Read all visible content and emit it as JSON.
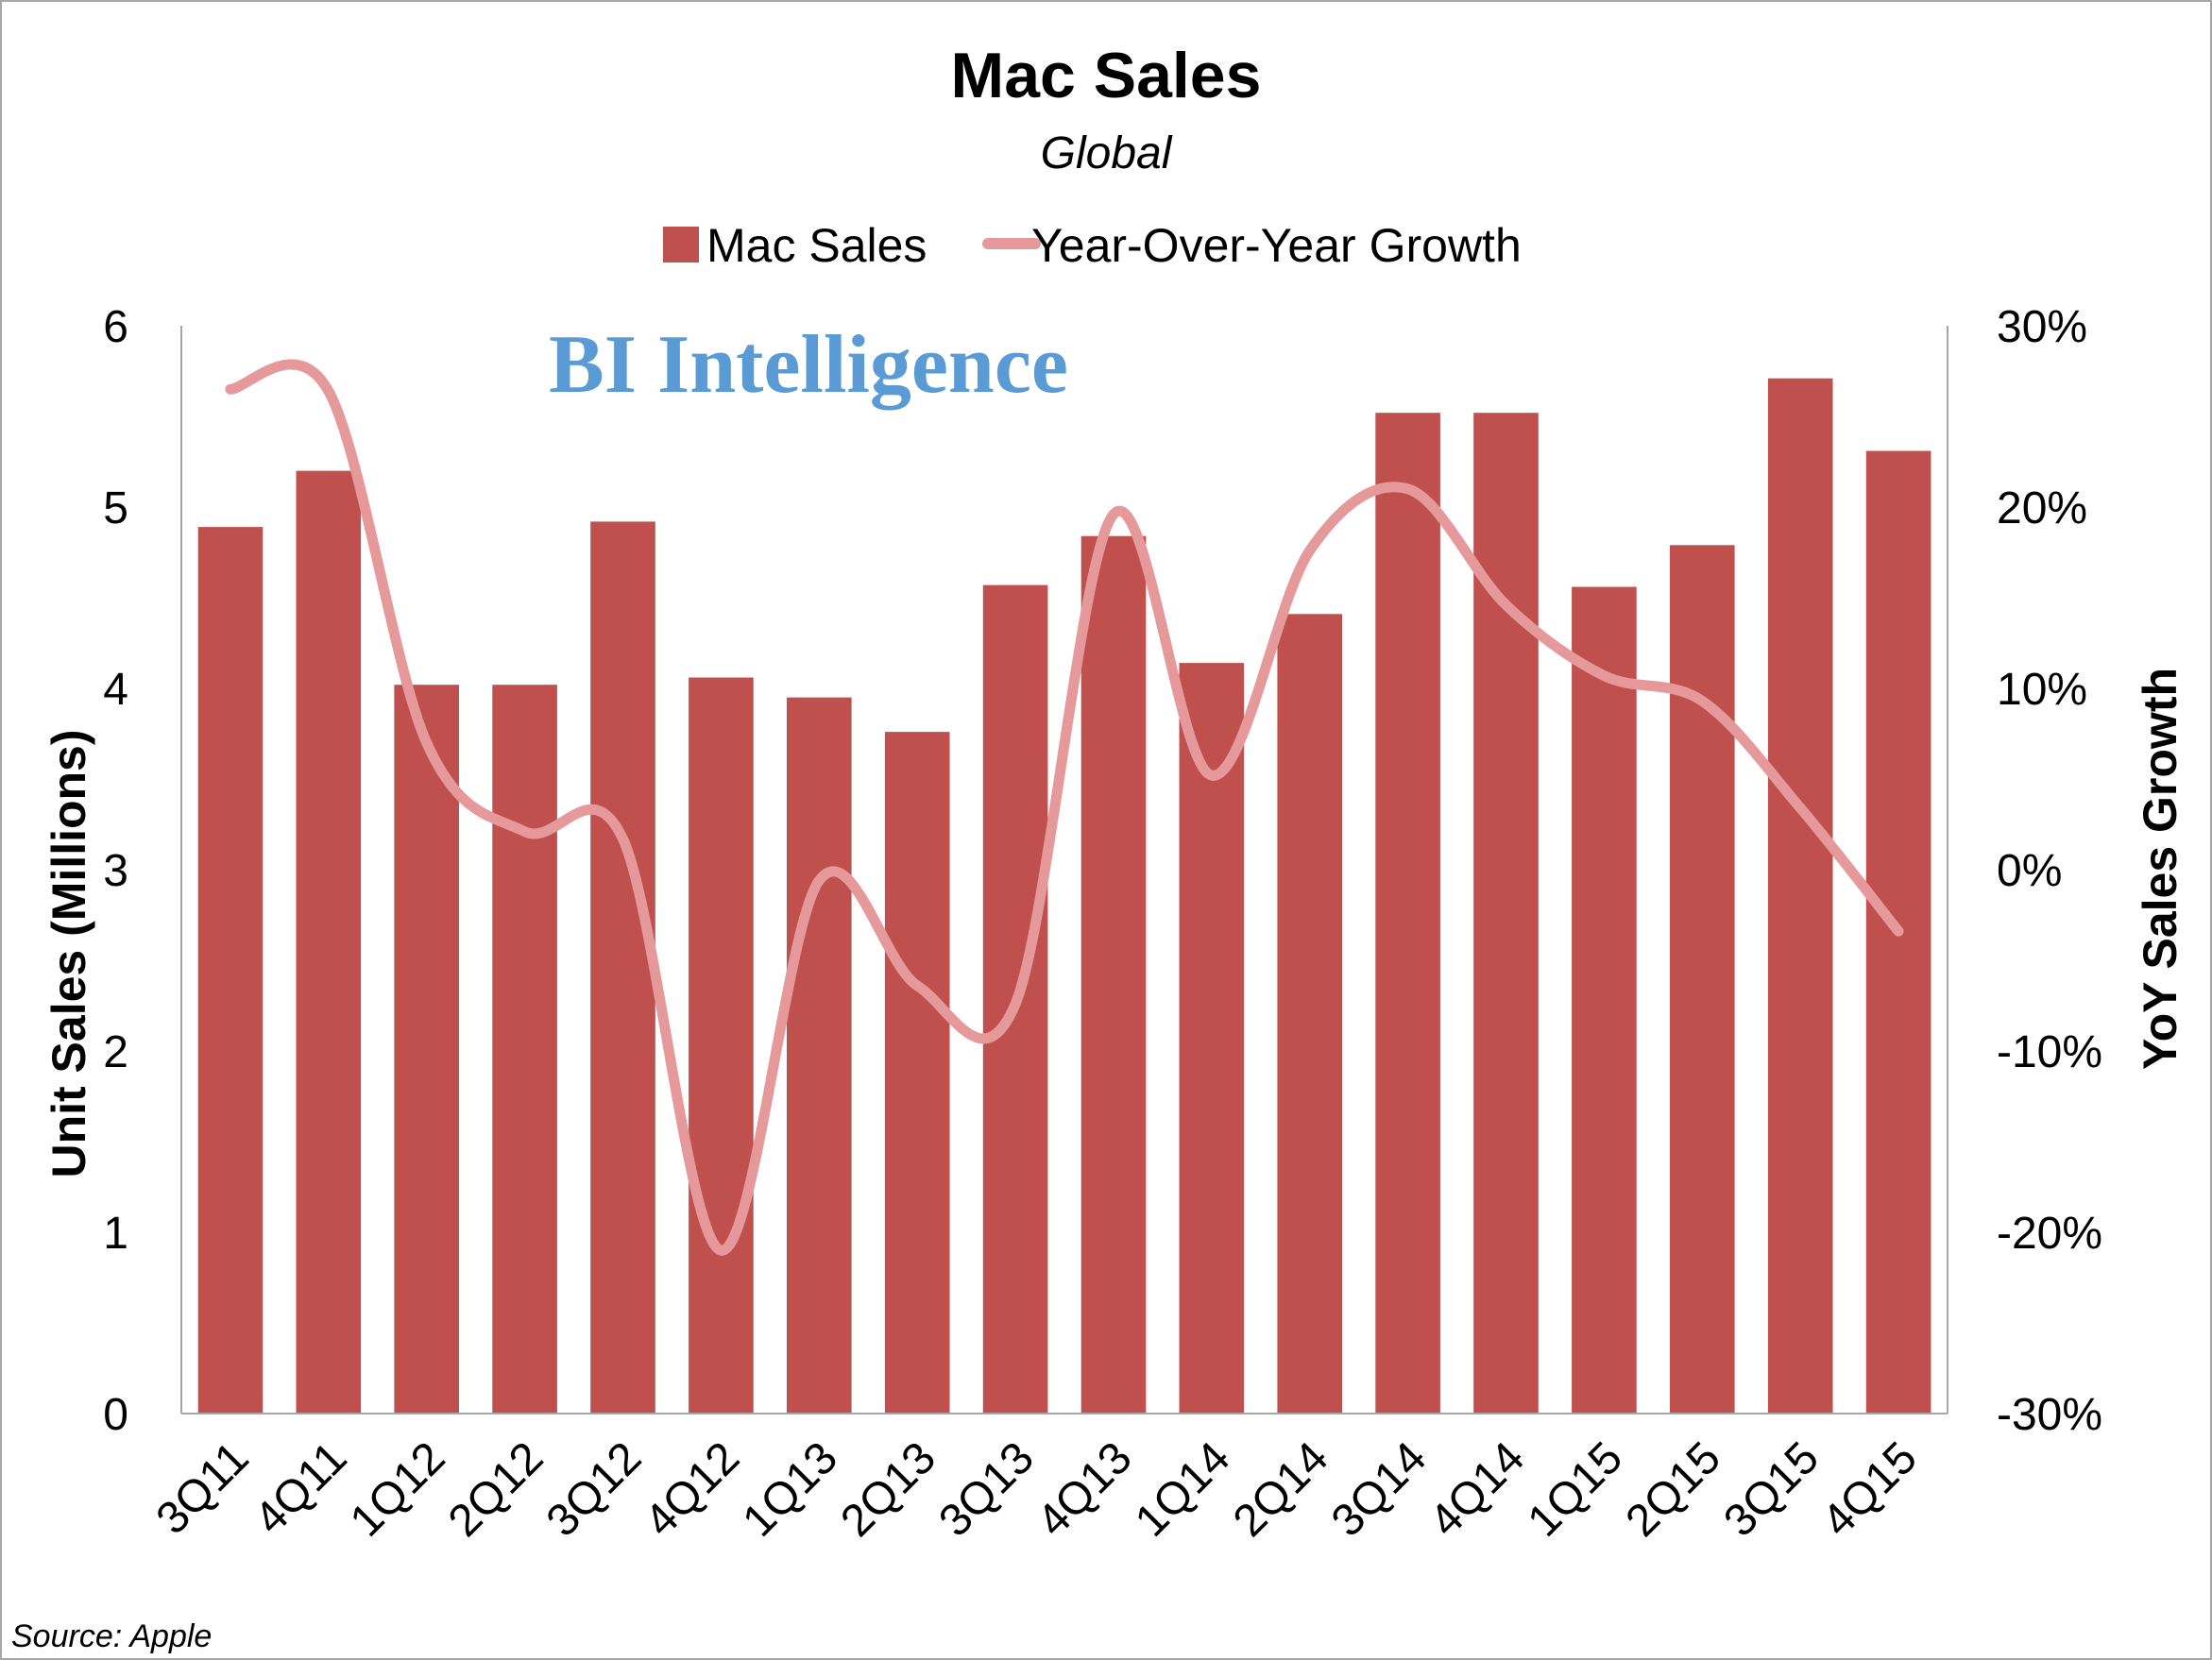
{
  "chart_data": {
    "type": "bar",
    "title": "Mac Sales",
    "subtitle": "Global",
    "categories": [
      "3Q11",
      "4Q11",
      "1Q12",
      "2Q12",
      "3Q12",
      "4Q12",
      "1Q13",
      "2Q13",
      "3Q13",
      "4Q13",
      "1Q14",
      "2Q14",
      "3Q14",
      "4Q14",
      "1Q15",
      "2Q15",
      "3Q15",
      "4Q15"
    ],
    "series": [
      {
        "name": "Mac Sales",
        "type": "bar",
        "axis": "left",
        "color": "#c0504d",
        "values": [
          4.89,
          5.2,
          4.02,
          4.02,
          4.92,
          4.06,
          3.95,
          3.76,
          4.57,
          4.84,
          4.14,
          4.41,
          5.52,
          5.52,
          4.56,
          4.79,
          5.71,
          5.31
        ]
      },
      {
        "name": "Year-Over-Year Growth",
        "type": "line",
        "axis": "right",
        "color": "#e6999a",
        "values": [
          26.5,
          26.4,
          7.0,
          2.1,
          1.7,
          -21.0,
          -0.6,
          -6.4,
          -7.4,
          19.6,
          5.2,
          17.6,
          21.0,
          14.6,
          10.7,
          9.3,
          3.4,
          -3.4
        ]
      }
    ],
    "ylabel": "Unit Sales (Millions)",
    "y2label": "YoY Sales Growth",
    "ylim": [
      0,
      6
    ],
    "y2lim": [
      -30,
      30
    ],
    "yticks": [
      0,
      1,
      2,
      3,
      4,
      5,
      6
    ],
    "y2ticks": [
      "-30%",
      "-20%",
      "-10%",
      "0%",
      "10%",
      "20%",
      "30%"
    ],
    "grid": false,
    "legend_position": "top-center",
    "legend": [
      "Mac Sales",
      "Year-Over-Year Growth"
    ],
    "watermark": "BI Intelligence",
    "source": "Source: Apple"
  }
}
